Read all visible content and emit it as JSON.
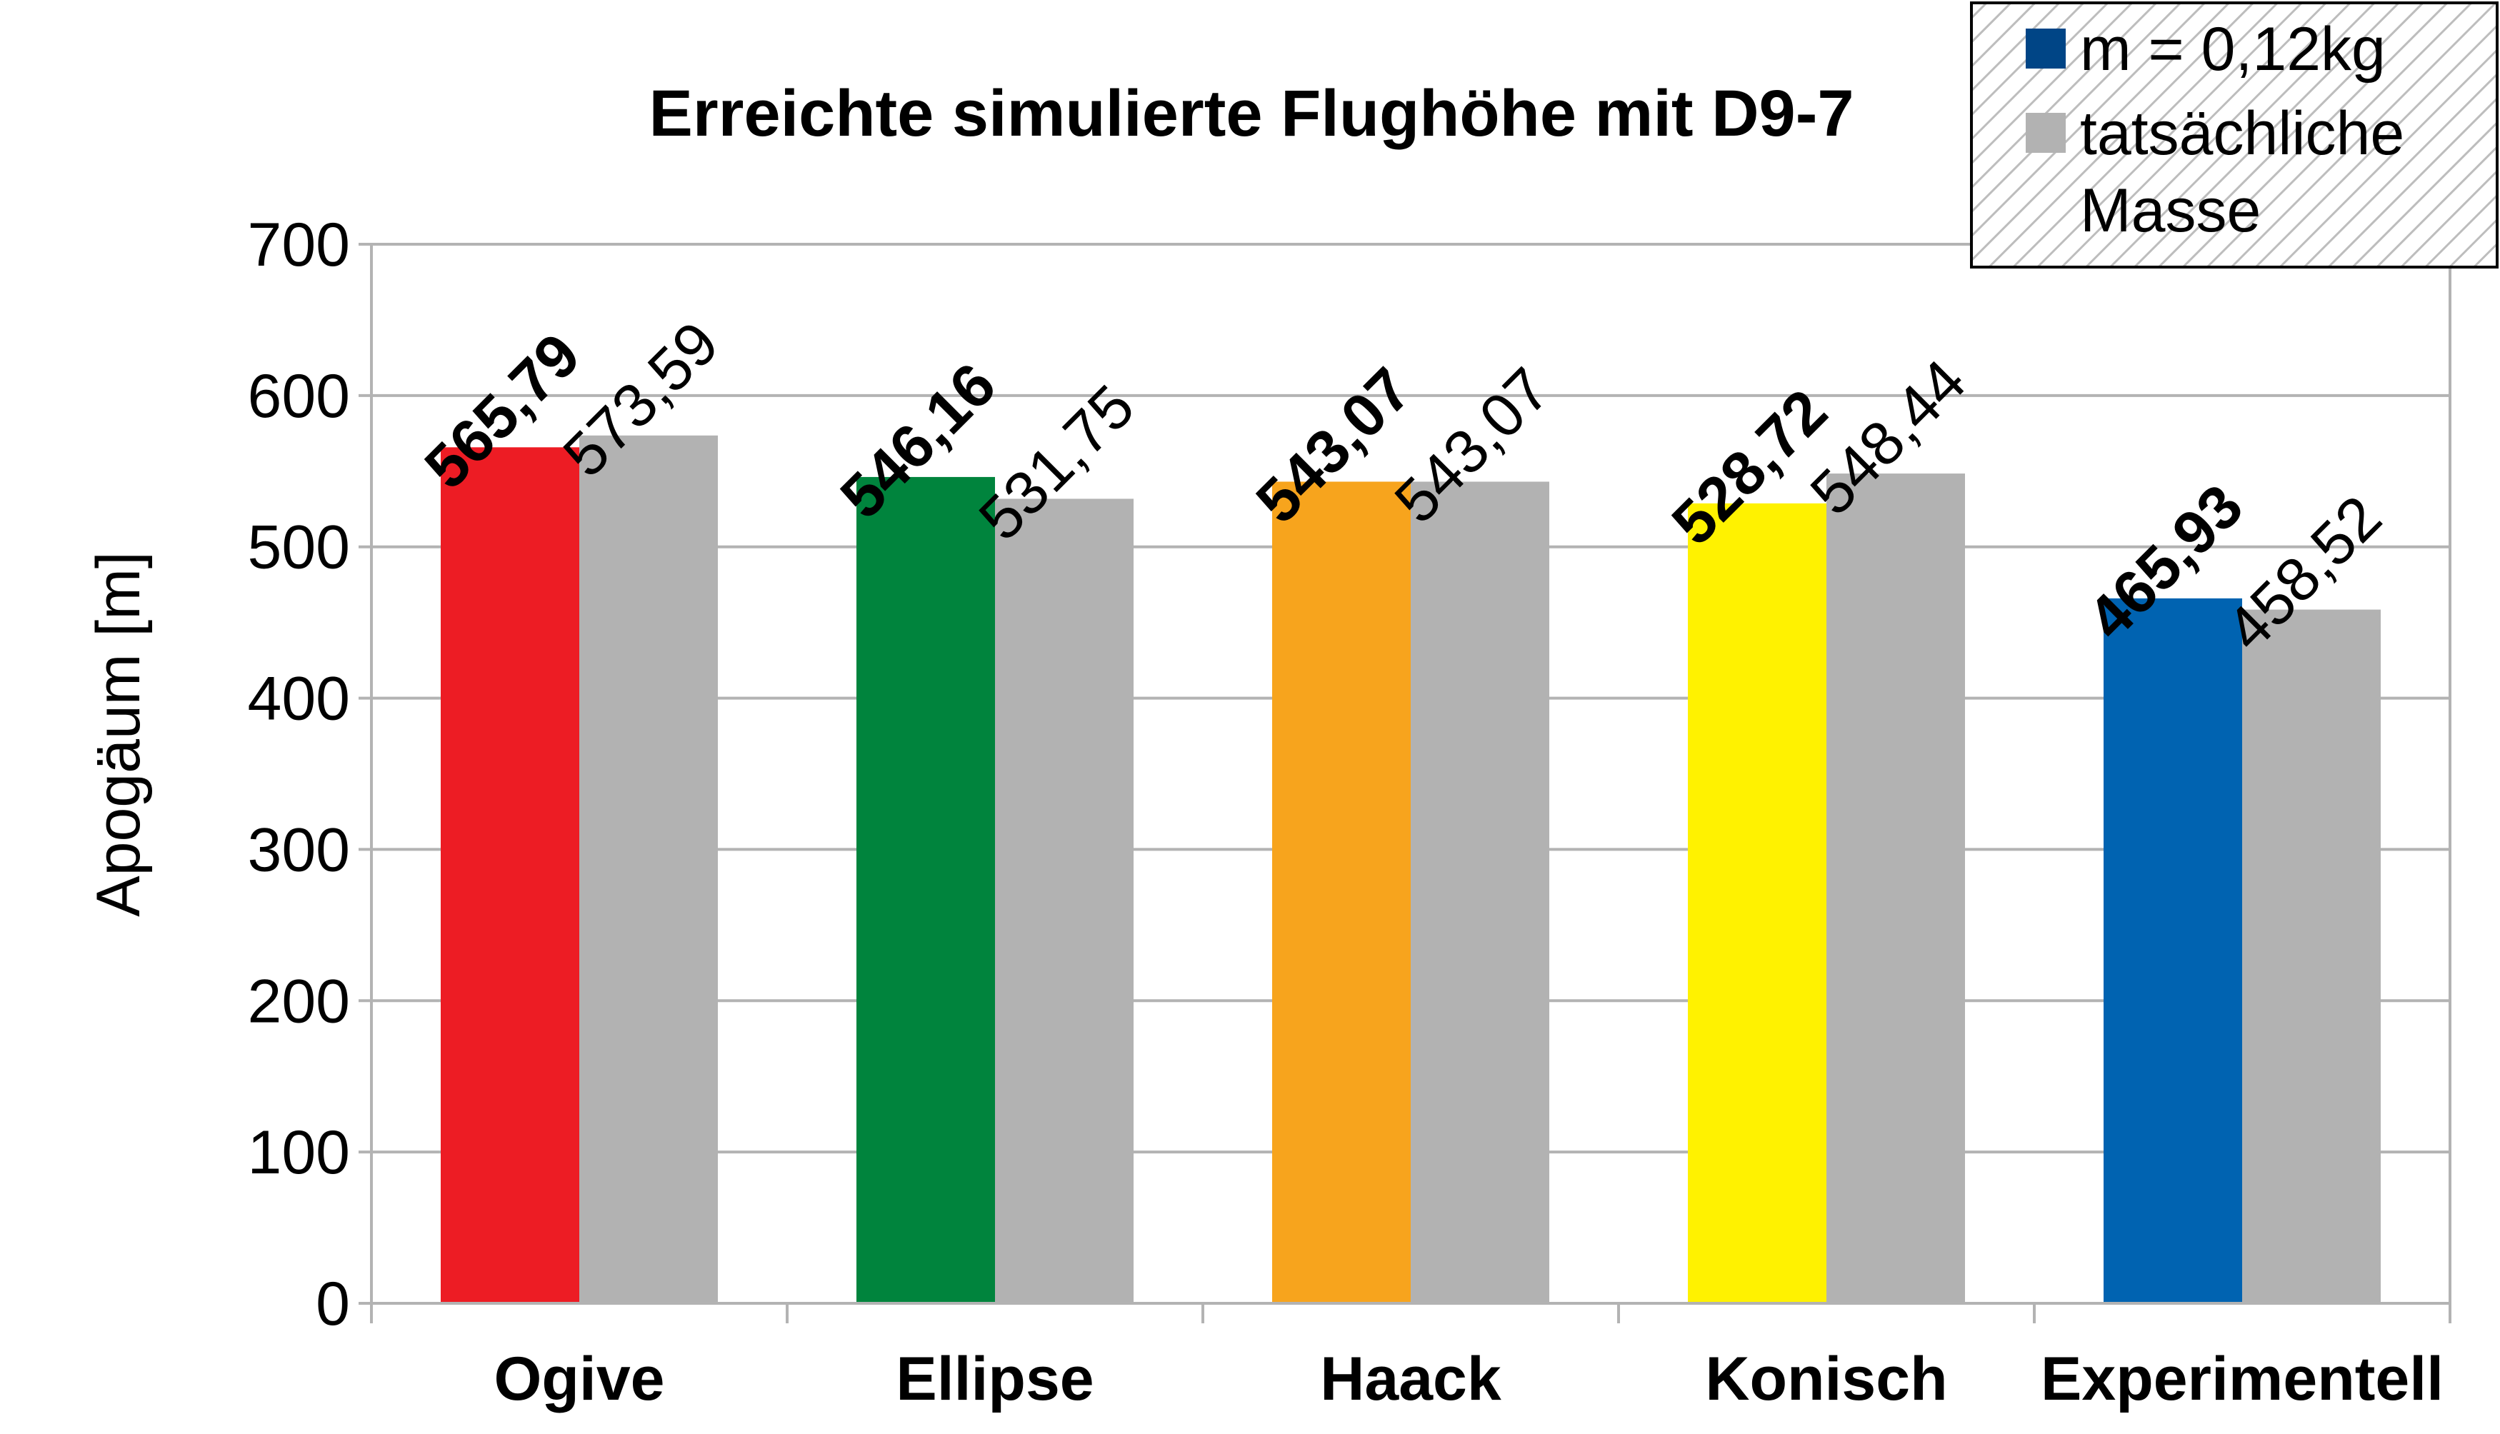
{
  "chart_data": {
    "type": "bar",
    "title": "Erreichte simulierte Flughöhe mit D9-7",
    "xlabel": "",
    "ylabel": "Apogäum [m]",
    "ylim": [
      0,
      700
    ],
    "yticks": [
      0,
      100,
      200,
      300,
      400,
      500,
      600,
      700
    ],
    "grid": true,
    "legend_position": "top-right",
    "categories": [
      "Ogive",
      "Ellipse",
      "Haack",
      "Konisch",
      "Experimentell"
    ],
    "series": [
      {
        "name": "m = 0,12kg",
        "values": [
          565.79,
          546.16,
          543.07,
          528.72,
          465.93
        ],
        "labels": [
          "565,79",
          "546,16",
          "543,07",
          "528,72",
          "465,93"
        ],
        "legend_color": "#004586",
        "bar_colors": [
          "#ED1C24",
          "#00843D",
          "#F7A41D",
          "#FFF200",
          "#0063B1"
        ],
        "label_style": "bold"
      },
      {
        "name": "tatsächliche Masse",
        "values": [
          573.59,
          531.75,
          543.07,
          548.44,
          458.52
        ],
        "labels": [
          "573,59",
          "531,75",
          "543,07",
          "548,44",
          "458,52"
        ],
        "legend_color": "#B2B2B2",
        "bar_colors": [
          "#B2B2B2",
          "#B2B2B2",
          "#B2B2B2",
          "#B2B2B2",
          "#B2B2B2"
        ],
        "label_style": "normal"
      }
    ]
  },
  "legend": {
    "entries": [
      {
        "lines": [
          "m = 0,12kg"
        ]
      },
      {
        "lines": [
          "tatsächliche",
          "Masse"
        ]
      }
    ]
  }
}
